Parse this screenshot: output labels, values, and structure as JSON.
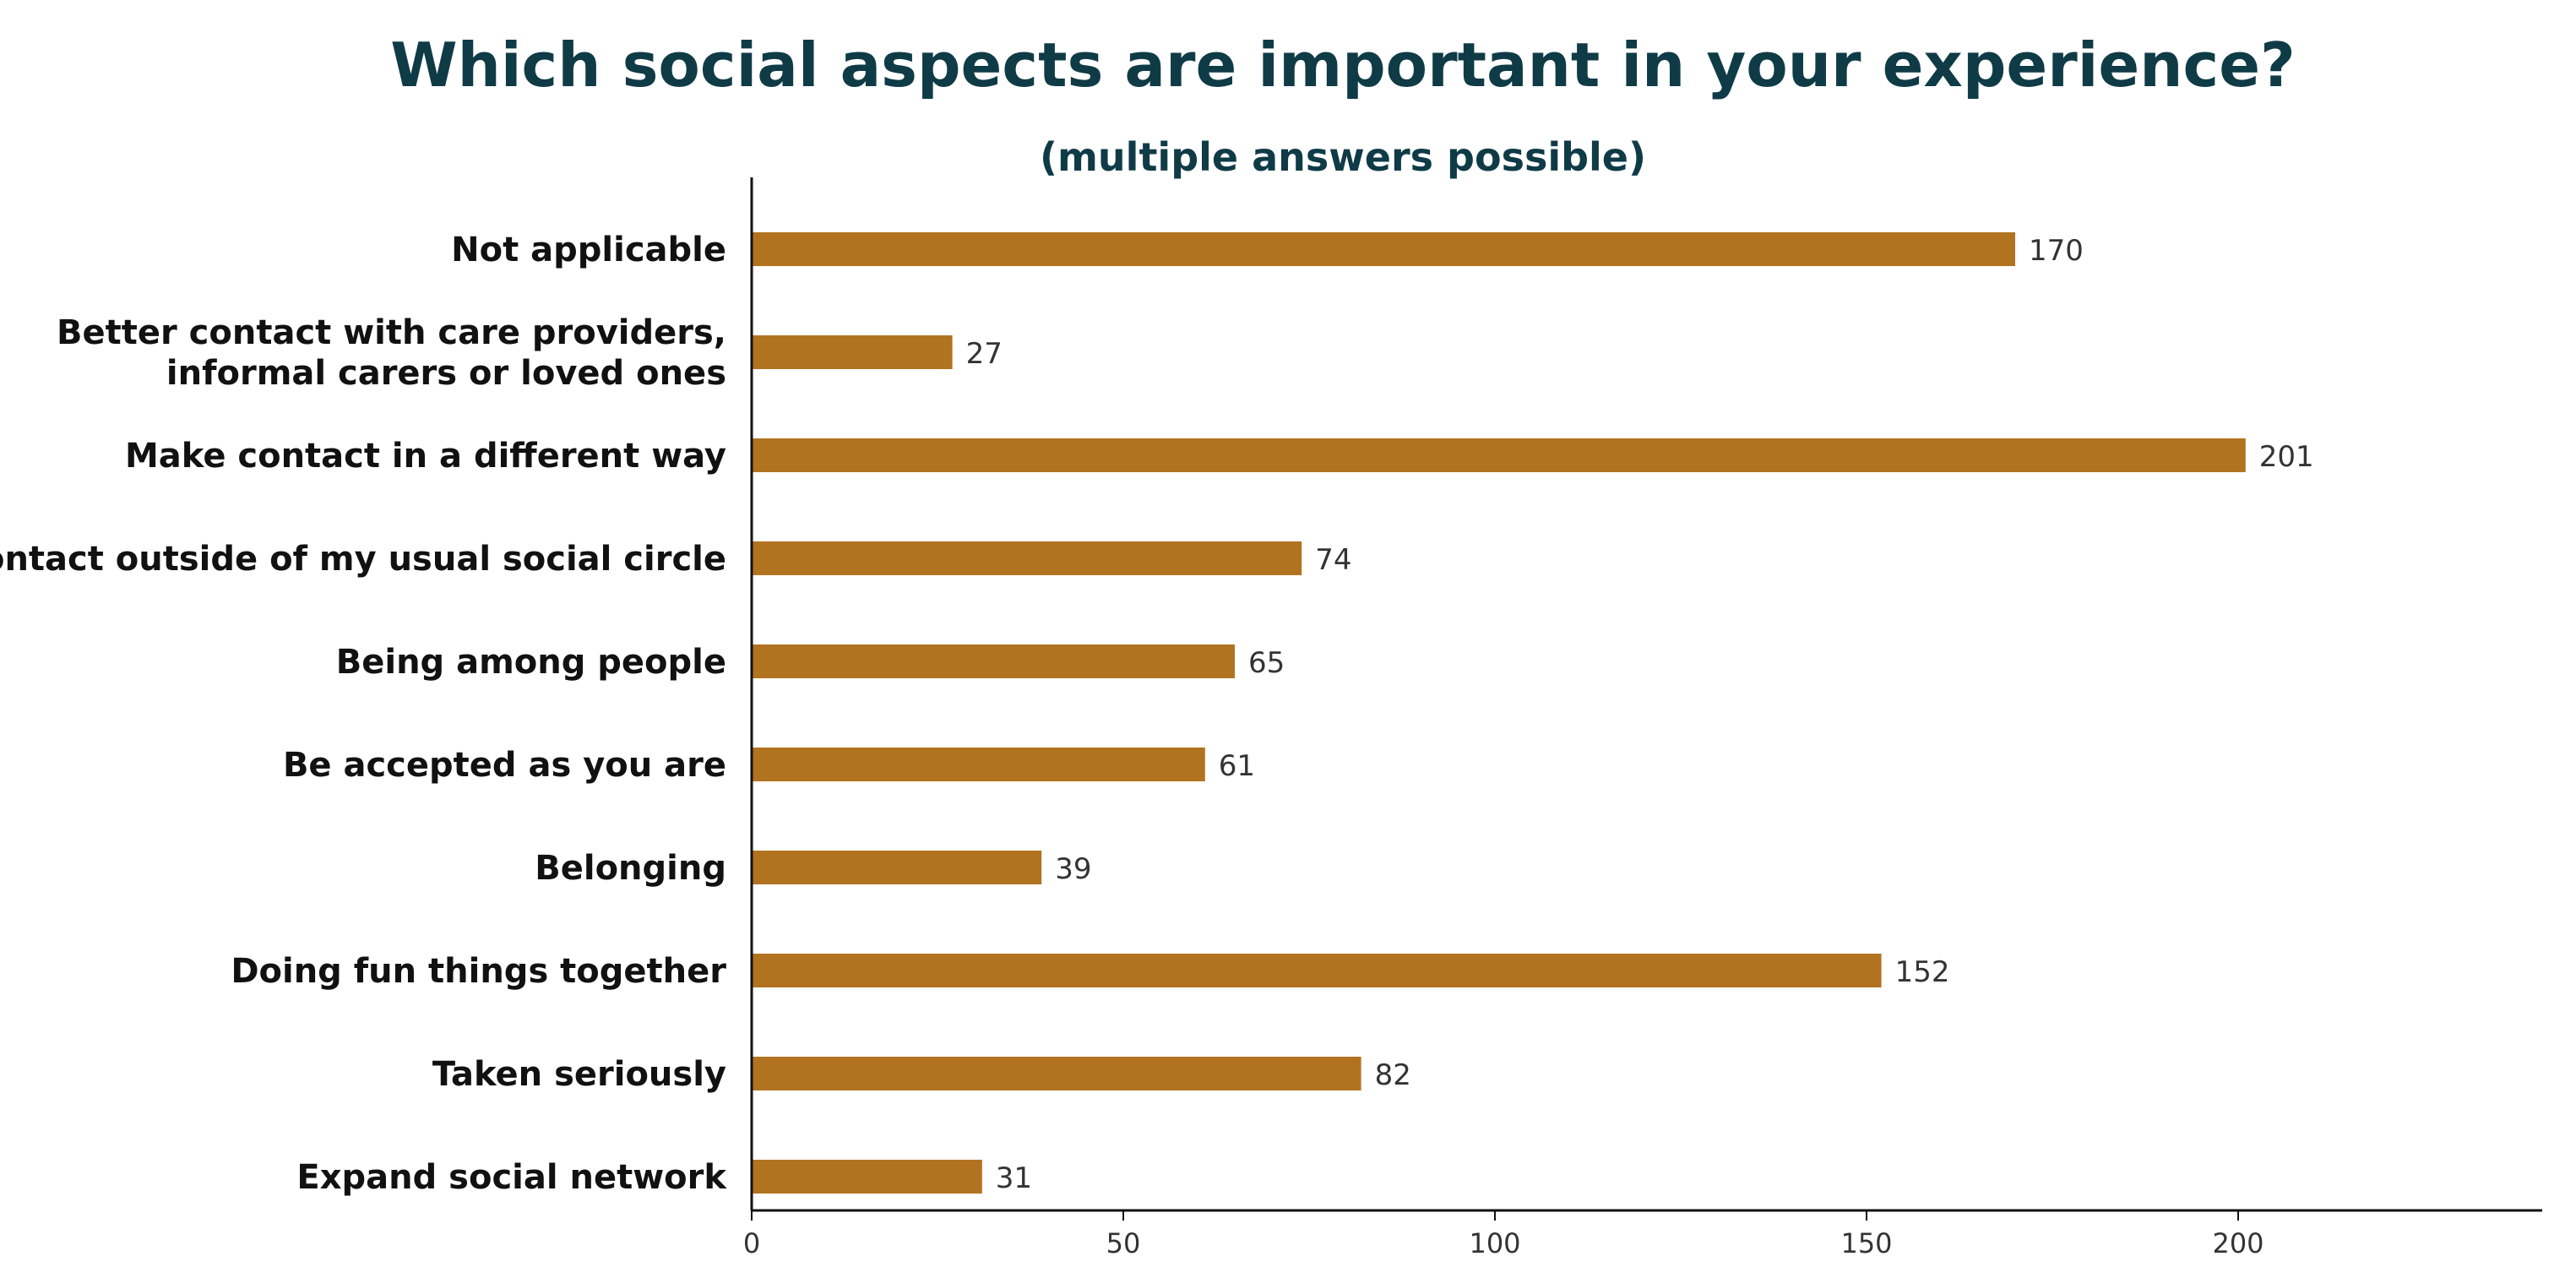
{
  "chart_data": {
    "type": "bar",
    "orientation": "horizontal",
    "title": "Which social aspects are important in your experience?",
    "subtitle": "(multiple answers possible)",
    "xlabel": "",
    "ylabel": "",
    "xlim": [
      0,
      240
    ],
    "xticks": [
      0,
      50,
      100,
      150,
      200
    ],
    "grid": false,
    "legend": "none",
    "categories": [
      [
        "Not applicable"
      ],
      [
        "Better contact with care providers,",
        "informal carers or loved ones"
      ],
      [
        "Make contact in a different way"
      ],
      [
        "Contact outside of my usual social circle"
      ],
      [
        "Being among people"
      ],
      [
        "Be accepted as you are"
      ],
      [
        "Belonging"
      ],
      [
        "Doing fun things together"
      ],
      [
        "Taken seriously"
      ],
      [
        "Expand social network"
      ]
    ],
    "values": [
      170,
      27,
      201,
      74,
      65,
      61,
      39,
      152,
      82,
      31
    ],
    "colors": {
      "bar": "#B27320",
      "title": "#0F3B47",
      "label": "#111111",
      "value": "#333333",
      "axis": "#111111"
    }
  }
}
